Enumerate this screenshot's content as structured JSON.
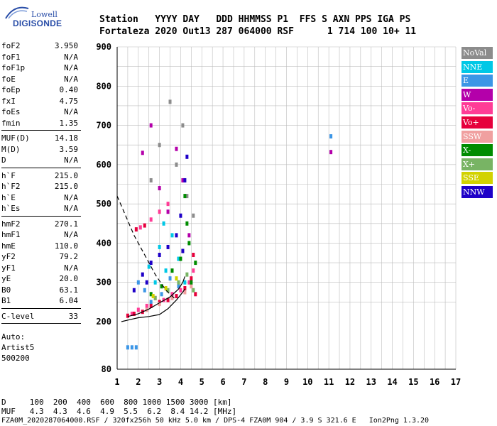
{
  "logo": {
    "line1": "Lowell",
    "line2": "DIGISONDE"
  },
  "header": {
    "row1": "Station   YYYY DAY   DDD HHMMSS P1  FFS S AXN PPS IGA PS",
    "row2": "Fortaleza 2020 Out13 287 064000 RSF      1 714 100 10+ 11"
  },
  "params": {
    "group1": [
      {
        "label": "foF2",
        "value": "3.950"
      },
      {
        "label": "foF1",
        "value": "N/A"
      },
      {
        "label": "foF1p",
        "value": "N/A"
      },
      {
        "label": "foE",
        "value": "N/A"
      },
      {
        "label": "foEp",
        "value": "0.40"
      },
      {
        "label": "fxI",
        "value": "4.75"
      },
      {
        "label": "foEs",
        "value": "N/A"
      },
      {
        "label": "fmin",
        "value": "1.35"
      }
    ],
    "group2": [
      {
        "label": "MUF(D)",
        "value": "14.18"
      },
      {
        "label": "M(D)",
        "value": "3.59"
      },
      {
        "label": "D",
        "value": "N/A"
      }
    ],
    "group3": [
      {
        "label": "h`F",
        "value": "215.0"
      },
      {
        "label": "h`F2",
        "value": "215.0"
      },
      {
        "label": "h`E",
        "value": "N/A"
      },
      {
        "label": "h`Es",
        "value": "N/A"
      }
    ],
    "group4": [
      {
        "label": "hmF2",
        "value": "270.1"
      },
      {
        "label": "hmF1",
        "value": "N/A"
      },
      {
        "label": "hmE",
        "value": "110.0"
      },
      {
        "label": "yF2",
        "value": "79.2"
      },
      {
        "label": "yF1",
        "value": "N/A"
      },
      {
        "label": "yE",
        "value": "20.0"
      },
      {
        "label": "B0",
        "value": "63.1"
      },
      {
        "label": "B1",
        "value": "6.04"
      }
    ],
    "group5": [
      {
        "label": "C-level",
        "value": "33"
      }
    ],
    "auto_lines": [
      "Auto:",
      "Artist5",
      "500200"
    ]
  },
  "footer": {
    "line1": "D     100  200  400  600  800 1000 1500 3000 [km]",
    "line2": "MUF   4.3  4.3  4.6  4.9  5.5  6.2  8.4 14.2 [MHz]",
    "line3": "FZA0M_2020287064000.RSF / 320fx256h 50 kHz 5.0 km / DPS-4 FZA0M 904 / 3.9 S 321.6 E   Ion2Png 1.3.20"
  },
  "legend": [
    {
      "label": "NoVal",
      "color": "#8c8c8c"
    },
    {
      "label": "NNE",
      "color": "#00c8e6"
    },
    {
      "label": "E",
      "color": "#3c96e6"
    },
    {
      "label": "W",
      "color": "#b400aa"
    },
    {
      "label": "Vo-",
      "color": "#ff3c96"
    },
    {
      "label": "Vo+",
      "color": "#e6003c"
    },
    {
      "label": "SSW",
      "color": "#f0a0a0"
    },
    {
      "label": "X-",
      "color": "#008c00"
    },
    {
      "label": "X+",
      "color": "#78b464"
    },
    {
      "label": "SSE",
      "color": "#d2d200"
    },
    {
      "label": "NNW",
      "color": "#1e00c8"
    }
  ],
  "chart_data": {
    "type": "scatter",
    "title": "",
    "xlabel": "",
    "ylabel": "",
    "xlim": [
      1,
      17
    ],
    "ylim": [
      80,
      900
    ],
    "xticks": [
      "1",
      "2",
      "3",
      "4",
      "5",
      "6",
      "7",
      "8",
      "9",
      "10",
      "11",
      "12",
      "13",
      "14",
      "15",
      "16",
      "17"
    ],
    "yticks": [
      "80",
      "200",
      "300",
      "400",
      "500",
      "600",
      "700",
      "800",
      "900"
    ],
    "grid": true,
    "legend_placement": "right",
    "series": [
      {
        "name": "NoVal",
        "points": [
          [
            3.0,
            650
          ],
          [
            3.5,
            760
          ],
          [
            3.8,
            600
          ],
          [
            4.3,
            520
          ],
          [
            4.6,
            470
          ],
          [
            2.6,
            560
          ],
          [
            4.1,
            700
          ]
        ]
      },
      {
        "name": "NNE",
        "points": [
          [
            2.5,
            340
          ],
          [
            3.0,
            390
          ],
          [
            3.3,
            330
          ],
          [
            3.6,
            420
          ],
          [
            3.9,
            360
          ],
          [
            4.2,
            300
          ],
          [
            2.8,
            300
          ],
          [
            3.2,
            450
          ]
        ]
      },
      {
        "name": "E",
        "points": [
          [
            2.0,
            300
          ],
          [
            2.3,
            280
          ],
          [
            2.6,
            250
          ],
          [
            3.1,
            270
          ],
          [
            3.5,
            310
          ],
          [
            3.9,
            290
          ],
          [
            1.5,
            135
          ],
          [
            1.7,
            135
          ],
          [
            1.9,
            135
          ],
          [
            11.1,
            672
          ]
        ]
      },
      {
        "name": "W",
        "points": [
          [
            2.2,
            630
          ],
          [
            2.6,
            700
          ],
          [
            3.0,
            540
          ],
          [
            3.4,
            480
          ],
          [
            3.8,
            640
          ],
          [
            4.1,
            560
          ],
          [
            4.4,
            420
          ],
          [
            11.1,
            632
          ]
        ]
      },
      {
        "name": "Vo-",
        "points": [
          [
            1.7,
            220
          ],
          [
            2.0,
            230
          ],
          [
            2.4,
            240
          ],
          [
            2.8,
            260
          ],
          [
            3.2,
            255
          ],
          [
            3.6,
            270
          ],
          [
            4.0,
            280
          ],
          [
            4.4,
            300
          ],
          [
            4.6,
            330
          ],
          [
            2.1,
            440
          ],
          [
            2.6,
            460
          ],
          [
            3.0,
            480
          ],
          [
            3.4,
            500
          ]
        ]
      },
      {
        "name": "Vo+",
        "points": [
          [
            1.5,
            215
          ],
          [
            1.8,
            220
          ],
          [
            2.2,
            225
          ],
          [
            2.6,
            240
          ],
          [
            3.0,
            250
          ],
          [
            3.4,
            255
          ],
          [
            3.8,
            265
          ],
          [
            4.2,
            285
          ],
          [
            4.5,
            310
          ],
          [
            4.7,
            270
          ],
          [
            1.9,
            435
          ],
          [
            2.3,
            445
          ],
          [
            4.6,
            370
          ]
        ]
      },
      {
        "name": "SSW",
        "points": [
          [
            2.4,
            230
          ],
          [
            3.0,
            245
          ],
          [
            3.6,
            260
          ],
          [
            4.2,
            275
          ],
          [
            4.5,
            290
          ]
        ]
      },
      {
        "name": "X-",
        "points": [
          [
            2.6,
            270
          ],
          [
            3.1,
            290
          ],
          [
            3.6,
            330
          ],
          [
            4.0,
            360
          ],
          [
            4.4,
            400
          ],
          [
            4.7,
            350
          ],
          [
            4.3,
            450
          ],
          [
            4.2,
            520
          ],
          [
            4.5,
            300
          ]
        ]
      },
      {
        "name": "X+",
        "points": [
          [
            2.8,
            260
          ],
          [
            3.4,
            280
          ],
          [
            3.9,
            300
          ],
          [
            4.3,
            320
          ],
          [
            4.6,
            280
          ]
        ]
      },
      {
        "name": "SSE",
        "points": [
          [
            2.7,
            265
          ],
          [
            3.3,
            285
          ],
          [
            3.8,
            310
          ],
          [
            4.1,
            380
          ]
        ]
      },
      {
        "name": "NNW",
        "points": [
          [
            1.8,
            280
          ],
          [
            2.2,
            320
          ],
          [
            2.6,
            350
          ],
          [
            3.0,
            370
          ],
          [
            3.4,
            390
          ],
          [
            3.8,
            420
          ],
          [
            4.0,
            470
          ],
          [
            4.2,
            560
          ],
          [
            4.3,
            620
          ],
          [
            4.1,
            380
          ],
          [
            2.4,
            300
          ]
        ]
      }
    ],
    "lines": [
      {
        "name": "dashed-profile",
        "style": "dashed",
        "points": [
          [
            1.0,
            520
          ],
          [
            1.4,
            470
          ],
          [
            1.8,
            420
          ],
          [
            2.3,
            370
          ],
          [
            2.8,
            320
          ],
          [
            3.3,
            280
          ],
          [
            3.7,
            260
          ]
        ]
      },
      {
        "name": "true-height-profile",
        "style": "solid",
        "points": [
          [
            1.2,
            200
          ],
          [
            1.6,
            205
          ],
          [
            2.0,
            210
          ],
          [
            2.5,
            213
          ],
          [
            3.0,
            218
          ],
          [
            3.4,
            233
          ],
          [
            3.8,
            255
          ],
          [
            4.1,
            275
          ],
          [
            4.2,
            283
          ]
        ]
      },
      {
        "name": "model-profile",
        "style": "solid",
        "points": [
          [
            1.5,
            213
          ],
          [
            2.0,
            220
          ],
          [
            2.5,
            232
          ],
          [
            3.0,
            248
          ],
          [
            3.5,
            263
          ],
          [
            3.9,
            283
          ],
          [
            4.1,
            300
          ],
          [
            4.2,
            315
          ]
        ]
      }
    ]
  }
}
